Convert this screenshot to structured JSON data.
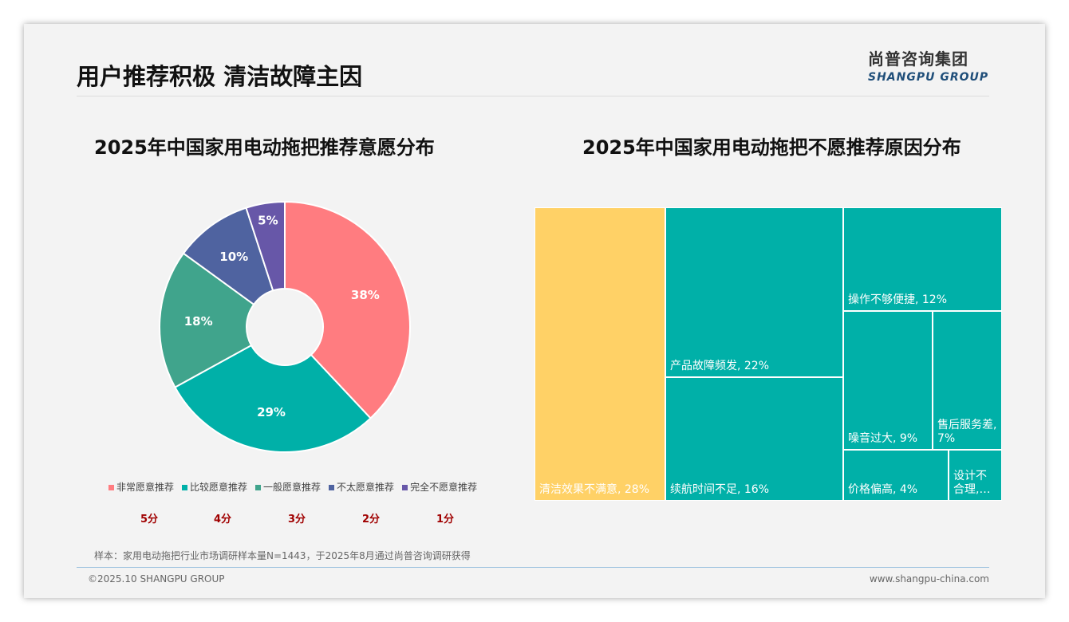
{
  "header": {
    "title": "用户推荐积极 清洁故障主因",
    "logo_cn": "尚普咨询集团",
    "logo_en": "SHANGPU GROUP"
  },
  "colors": {
    "s5": "#FF7C80",
    "s4": "#00B0A8",
    "s3": "#40A48C",
    "s2": "#4F63A0",
    "s1": "#6757A8",
    "treemap_main": "#00B0A8",
    "treemap_top": "#FFD166"
  },
  "chart_data": [
    {
      "type": "pie",
      "title": "2025年中国家用电动拖把推荐意愿分布",
      "categories": [
        "非常愿意推荐",
        "比较愿意推荐",
        "一般愿意推荐",
        "不太愿意推荐",
        "完全不愿意推荐"
      ],
      "values": [
        38,
        29,
        18,
        10,
        5
      ],
      "labels": [
        "38%",
        "29%",
        "18%",
        "10%",
        "5%"
      ],
      "scores": [
        "5分",
        "4分",
        "3分",
        "2分",
        "1分"
      ],
      "legend": "bottom"
    },
    {
      "type": "treemap",
      "title": "2025年中国家用电动拖把不愿推荐原因分布",
      "categories": [
        "清洁效果不满意",
        "产品故障频发",
        "续航时间不足",
        "操作不够便捷",
        "噪音过大",
        "售后服务差",
        "价格偏高",
        "设计不合理"
      ],
      "values": [
        28,
        22,
        16,
        12,
        9,
        7,
        4,
        2
      ],
      "labels": [
        "清洁效果不满意, 28%",
        "产品故障频发, 22%",
        "续航时间不足, 16%",
        "操作不够便捷, 12%",
        "噪音过大, 9%",
        "售后服务差, 7%",
        "价格偏高, 4%",
        "设计不合理,…"
      ]
    }
  ],
  "footer": {
    "note": "样本：家用电动拖把行业市场调研样本量N=1443，于2025年8月通过尚普咨询调研获得",
    "copyright": "©2025.10 SHANGPU GROUP",
    "url": "www.shangpu-china.com"
  }
}
